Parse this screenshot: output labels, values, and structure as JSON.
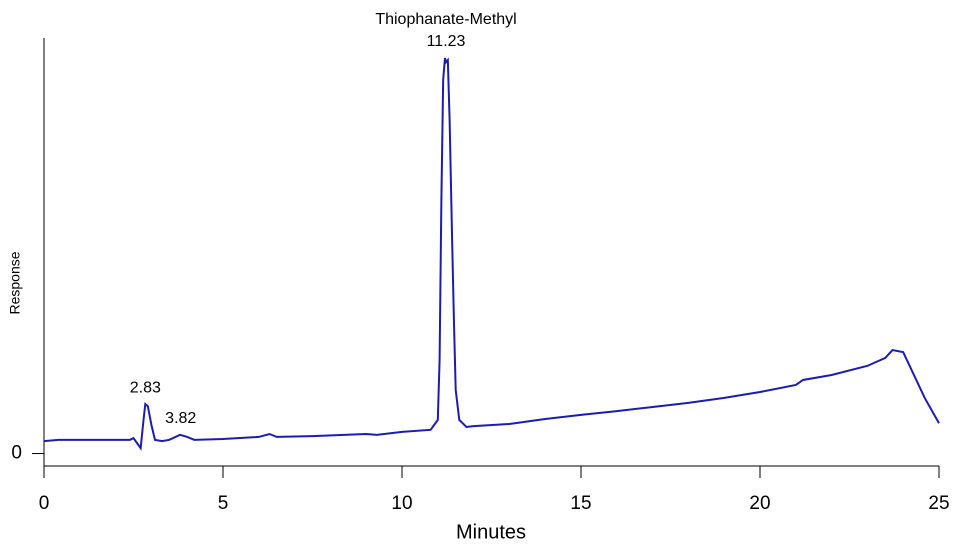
{
  "chart_data": {
    "type": "line",
    "x_label": "Minutes",
    "y_label": "Response",
    "xlim": [
      0,
      25
    ],
    "xticks": [
      0,
      5,
      10,
      15,
      20,
      25
    ],
    "ylim": [
      -3,
      100
    ],
    "yticks": [
      0
    ],
    "x": [
      0,
      0.4,
      2.4,
      2.5,
      2.6,
      2.7,
      2.78,
      2.83,
      2.9,
      3.0,
      3.1,
      3.3,
      3.5,
      3.8,
      4.0,
      4.2,
      5,
      6,
      6.3,
      6.5,
      7.5,
      9,
      9.3,
      10,
      10.8,
      11.0,
      11.05,
      11.1,
      11.15,
      11.2,
      11.23,
      11.28,
      11.33,
      11.4,
      11.45,
      11.5,
      11.6,
      11.8,
      12,
      13,
      14,
      15,
      16,
      17,
      18,
      19,
      20,
      21,
      21.2,
      22,
      23,
      23.5,
      23.7,
      24,
      24.3,
      24.6,
      25
    ],
    "series": [
      {
        "color": "#1c1cb0",
        "values": [
          3.0,
          3.3,
          3.3,
          3.7,
          2.5,
          1.3,
          8.1,
          11.9,
          11.4,
          6.9,
          3.3,
          3.0,
          3.3,
          4.5,
          4.0,
          3.3,
          3.5,
          4.0,
          4.7,
          4.0,
          4.2,
          4.7,
          4.5,
          5.2,
          5.7,
          8.1,
          22.5,
          61.0,
          89.9,
          95.2,
          94.2,
          94.7,
          80.3,
          51.4,
          32.1,
          15.3,
          8.1,
          6.4,
          6.6,
          7.1,
          8.3,
          9.3,
          10.2,
          11.2,
          12.2,
          13.4,
          14.8,
          16.5,
          17.7,
          18.9,
          21.1,
          23.0,
          24.9,
          24.4,
          18.9,
          13.4,
          7.3
        ]
      }
    ],
    "peaks": [
      {
        "rt": 2.83
      },
      {
        "rt": 3.82
      },
      {
        "rt": 11.23,
        "name": "Thiophanate-Methyl"
      }
    ]
  }
}
